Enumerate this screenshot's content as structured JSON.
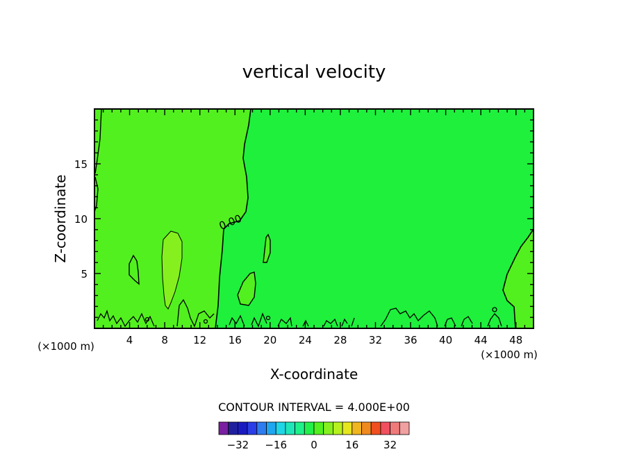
{
  "chart_data": {
    "type": "heatmap",
    "title": "vertical velocity",
    "xlabel": "X-coordinate",
    "ylabel": "Z-coordinate",
    "x_unit_label": "(×1000 m)",
    "x_unit_label_right": "(×1000 m)",
    "xlim": [
      0,
      50
    ],
    "ylim": [
      0,
      20
    ],
    "xticks": [
      4,
      8,
      12,
      16,
      20,
      24,
      28,
      32,
      36,
      40,
      44,
      48
    ],
    "yticks": [
      5,
      10,
      15
    ],
    "contour_label": "0.00",
    "contour_interval_text": "CONTOUR INTERVAL = 4.000E+00",
    "colorbar": {
      "levels": [
        -36,
        -32,
        -28,
        -24,
        -20,
        -16,
        -12,
        -8,
        -4,
        0,
        4,
        8,
        12,
        16,
        20,
        24,
        28,
        32,
        36
      ],
      "colors": [
        "#7a1fa0",
        "#1f1f9e",
        "#1a1ac2",
        "#2a3de6",
        "#2f7cf0",
        "#1ea6f0",
        "#1fd6e6",
        "#1ee6b8",
        "#1ef08a",
        "#22f04a",
        "#52f01f",
        "#86f01f",
        "#b6f01f",
        "#e6e61f",
        "#f0b61f",
        "#f08a1f",
        "#f0501f",
        "#f0505f",
        "#f07a7a",
        "#f0a0a0"
      ],
      "tick_labels": [
        "-32",
        "-16",
        "0",
        "16",
        "32"
      ],
      "tick_values": [
        -32,
        -16,
        0,
        16,
        32
      ]
    },
    "regions": {
      "background_color": "#1ef03c",
      "positive_color": "#52f01f",
      "strong_positive_color": "#86f01f"
    }
  }
}
